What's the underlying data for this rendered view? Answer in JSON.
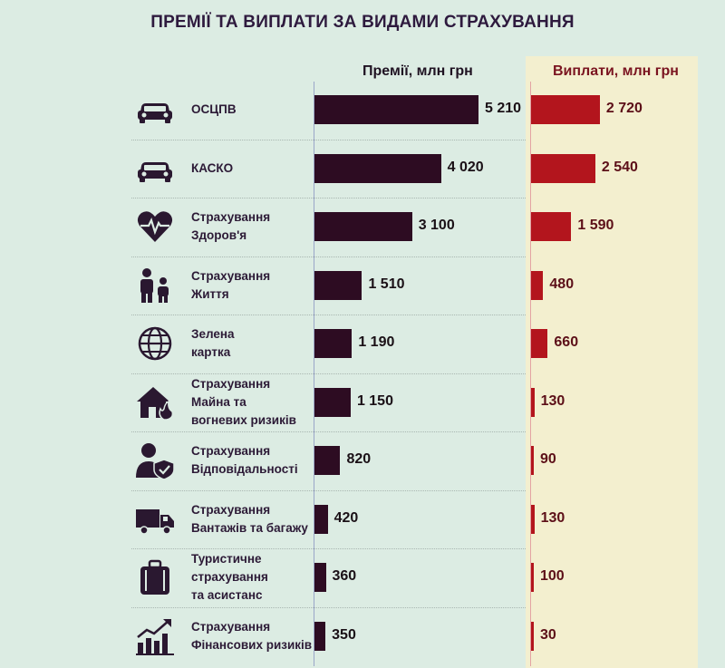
{
  "title": "ПРЕМІЇ ТА ВИПЛАТИ ЗА ВИДАМИ СТРАХУВАННЯ",
  "colors": {
    "premium_bar": "#2d0c22",
    "payout_bar": "#b3151d",
    "payout_panel": "#f3efcf",
    "background": "#dcece3"
  },
  "chart_data": {
    "type": "bar",
    "orientation": "horizontal",
    "title": "ПРЕМІЇ ТА ВИПЛАТИ ЗА ВИДАМИ СТРАХУВАННЯ",
    "categories": [
      "ОСЦПВ",
      "КАСКО",
      "Страхування\nЗдоров'я",
      "Страхування\nЖиття",
      "Зелена\nкартка",
      "Страхування\nМайна та\nвогневих ризиків",
      "Страхування\nВідповідальності",
      "Страхування\nВантажів та багажу",
      "Туристичне\nстрахування\nта асистанс",
      "Страхування\nФінансових ризиків"
    ],
    "icons": [
      "car-icon",
      "car-icon",
      "heart-pulse-icon",
      "family-icon",
      "globe-icon",
      "house-fire-icon",
      "person-shield-icon",
      "truck-icon",
      "suitcase-icon",
      "growth-chart-icon"
    ],
    "series": [
      {
        "name": "Премії, млн грн",
        "values": [
          5210,
          4020,
          3100,
          1510,
          1190,
          1150,
          820,
          420,
          360,
          350
        ],
        "labels": [
          "5 210",
          "4 020",
          "3 100",
          "1 510",
          "1 190",
          "1 150",
          "820",
          "420",
          "360",
          "350"
        ]
      },
      {
        "name": "Виплати, млн грн",
        "values": [
          2720,
          2540,
          1590,
          480,
          660,
          130,
          90,
          130,
          100,
          30
        ],
        "labels": [
          "2 720",
          "2 540",
          "1 590",
          "480",
          "660",
          "130",
          "90",
          "130",
          "100",
          "30"
        ]
      }
    ],
    "xlim": [
      0,
      5210
    ],
    "legend": "column headers"
  }
}
